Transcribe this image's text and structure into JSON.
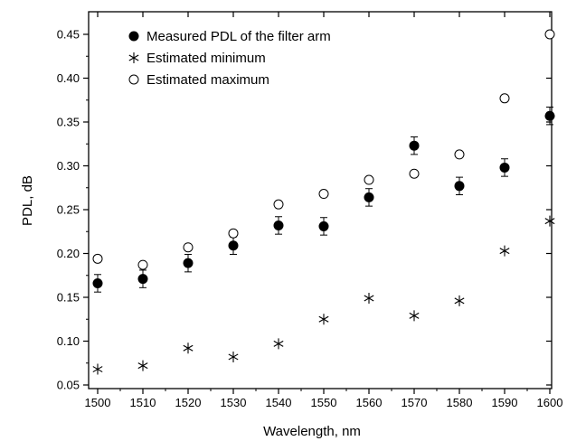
{
  "chart_data": {
    "type": "scatter",
    "xlabel": "Wavelength, nm",
    "ylabel": "PDL, dB",
    "xlim": [
      1500,
      1600
    ],
    "ylim": [
      0.05,
      0.46
    ],
    "x_ticks": [
      1500,
      1510,
      1520,
      1530,
      1540,
      1550,
      1560,
      1570,
      1580,
      1590,
      1600
    ],
    "x_tick_labels": [
      "1500",
      "1510",
      "1520",
      "1530",
      "1540",
      "1550",
      "1560",
      "1570",
      "1580",
      "1590",
      "1600"
    ],
    "y_ticks": [
      0.05,
      0.1,
      0.15,
      0.2,
      0.25,
      0.3,
      0.35,
      0.4,
      0.45
    ],
    "y_tick_labels": [
      "0.05",
      "0.10",
      "0.15",
      "0.20",
      "0.25",
      "0.30",
      "0.35",
      "0.40",
      "0.45"
    ],
    "grid": false,
    "legend_position": "top-left",
    "x": [
      1500,
      1510,
      1520,
      1530,
      1540,
      1550,
      1560,
      1570,
      1580,
      1590,
      1600
    ],
    "series": [
      {
        "name": "Measured PDL of the filter arm",
        "marker": "filled-circle",
        "color": "#000000",
        "values": [
          0.166,
          0.171,
          0.189,
          0.209,
          0.232,
          0.231,
          0.264,
          0.323,
          0.277,
          0.298,
          0.357
        ],
        "error": [
          0.01,
          0.01,
          0.01,
          0.01,
          0.01,
          0.01,
          0.01,
          0.01,
          0.01,
          0.01,
          0.01
        ]
      },
      {
        "name": "Estimated minimum",
        "marker": "asterisk",
        "color": "#000000",
        "values": [
          0.068,
          0.072,
          0.092,
          0.082,
          0.097,
          0.125,
          0.149,
          0.129,
          0.146,
          0.203,
          0.237
        ]
      },
      {
        "name": "Estimated maximum",
        "marker": "open-circle",
        "color": "#000000",
        "values": [
          0.194,
          0.187,
          0.207,
          0.223,
          0.256,
          0.268,
          0.284,
          0.291,
          0.313,
          0.377,
          0.45
        ]
      }
    ]
  }
}
